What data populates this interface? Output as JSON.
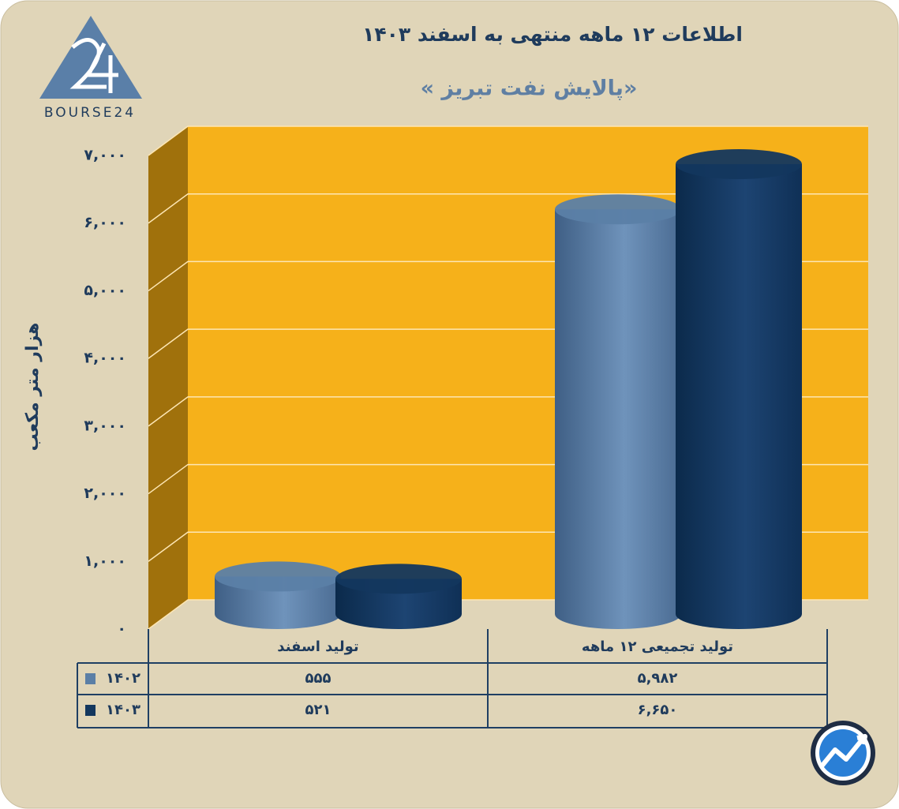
{
  "logo": "BOURSE24",
  "chart_data": {
    "type": "bar3d",
    "title": "اطلاعات ۱۲ ماهه منتهی به اسفند ۱۴۰۳",
    "subtitle": "« پالایش نفت تبریز»",
    "y_label": "هزار متر مکعب",
    "categories": [
      "تولید اسفند",
      "تولید تجمیعی ۱۲ ماهه"
    ],
    "series": [
      {
        "name": "۱۴۰۲",
        "color": "#5b7fa6",
        "values": [
          555,
          5982
        ],
        "value_labels": [
          "۵۵۵",
          "۵,۹۸۲"
        ]
      },
      {
        "name": "۱۴۰۳",
        "color": "#13375e",
        "values": [
          521,
          6650
        ],
        "value_labels": [
          "۵۲۱",
          "۶,۶۵۰"
        ]
      }
    ],
    "ylim": [
      0,
      7000
    ],
    "yticks": [
      {
        "value": 0,
        "label": "۰"
      },
      {
        "value": 1000,
        "label": "۱,۰۰۰"
      },
      {
        "value": 2000,
        "label": "۲,۰۰۰"
      },
      {
        "value": 3000,
        "label": "۳,۰۰۰"
      },
      {
        "value": 4000,
        "label": "۴,۰۰۰"
      },
      {
        "value": 5000,
        "label": "۵,۰۰۰"
      },
      {
        "value": 6000,
        "label": "۶,۰۰۰"
      },
      {
        "value": 7000,
        "label": "۷,۰۰۰"
      }
    ],
    "grid": true
  }
}
